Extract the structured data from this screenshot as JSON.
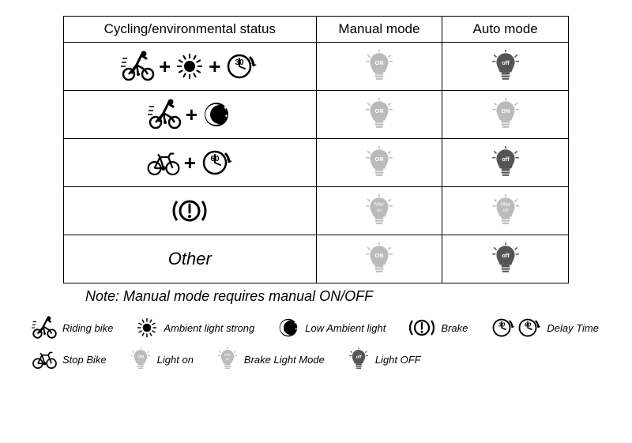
{
  "colors": {
    "black": "#000000",
    "darkGray": "#555555",
    "lightGray": "#bbbbbb",
    "white": "#ffffff"
  },
  "headers": {
    "status": "Cycling/environmental status",
    "manual": "Manual mode",
    "auto": "Auto mode"
  },
  "table": {
    "rows": [
      {
        "status_icons": [
          "riding",
          "plus",
          "sun",
          "plus",
          "delay30"
        ],
        "manual": "bulb-on",
        "auto": "bulb-off"
      },
      {
        "status_icons": [
          "riding",
          "plus",
          "moon"
        ],
        "manual": "bulb-on",
        "auto": "bulb-on"
      },
      {
        "status_icons": [
          "stopbike",
          "plus",
          "delay60"
        ],
        "manual": "bulb-on",
        "auto": "bulb-off"
      },
      {
        "status_icons": [
          "brake"
        ],
        "manual": "bulb-max",
        "auto": "bulb-max"
      },
      {
        "status_text": "Other",
        "manual": "bulb-on",
        "auto": "bulb-off"
      }
    ]
  },
  "note": "Note: Manual mode requires manual ON/OFF",
  "legend": [
    {
      "icon": "riding",
      "label": "Riding bike"
    },
    {
      "icon": "sun",
      "label": "Ambient light strong"
    },
    {
      "icon": "moon",
      "label": "Low Ambient light"
    },
    {
      "icon": "brake",
      "label": "Brake"
    },
    {
      "icon": "delay3060",
      "label": "Delay Time"
    },
    {
      "icon": "stopbike",
      "label": "Stop Bike"
    },
    {
      "icon": "bulb-on",
      "label": "Light on"
    },
    {
      "icon": "bulb-max",
      "label": "Brake Light Mode"
    },
    {
      "icon": "bulb-off",
      "label": "Light OFF"
    }
  ],
  "bulbText": {
    "on": "ON",
    "off": "off",
    "max": "Max\non"
  },
  "delayText": {
    "d30": "30",
    "d60": "60"
  }
}
